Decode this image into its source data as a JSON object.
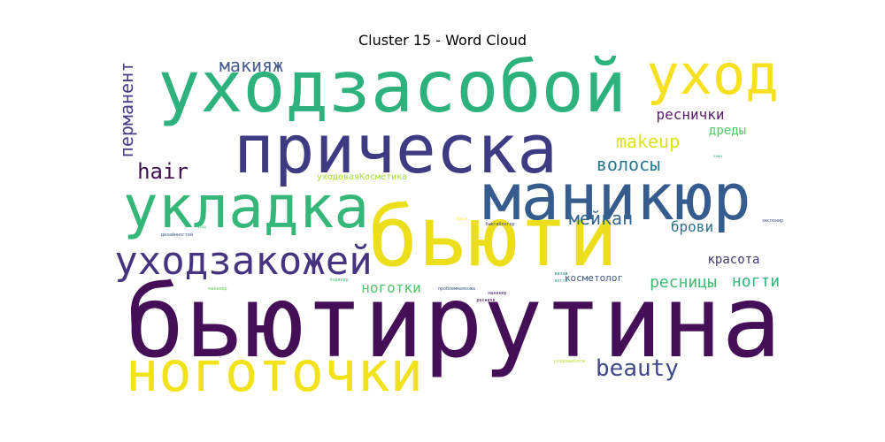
{
  "chart_data": {
    "type": "wordcloud",
    "title": "Cluster 15 - Word Cloud",
    "words": [
      {
        "text": "бьютирутина",
        "weight": 100,
        "color": "#440f56"
      },
      {
        "text": "уходзасобой",
        "weight": 77,
        "color": "#2db27d"
      },
      {
        "text": "прическа",
        "weight": 74,
        "color": "#3e3b83"
      },
      {
        "text": "бьюти",
        "weight": 73,
        "color": "#ecde1b"
      },
      {
        "text": "маникюр",
        "weight": 69,
        "color": "#365c8d"
      },
      {
        "text": "укладка",
        "weight": 67,
        "color": "#35b779"
      },
      {
        "text": "ноготочки",
        "weight": 62,
        "color": "#f2e21a"
      },
      {
        "text": "уход",
        "weight": 58,
        "color": "#f6e01f"
      },
      {
        "text": "уходзакожей",
        "weight": 43,
        "color": "#463480"
      },
      {
        "text": "beauty",
        "weight": 26,
        "color": "#3f4889"
      },
      {
        "text": "hair",
        "weight": 23,
        "color": "#3f0f52"
      },
      {
        "text": "макияж",
        "weight": 20,
        "color": "#475c8c"
      },
      {
        "text": "перманент",
        "weight": 19,
        "color": "#433e85"
      },
      {
        "text": "makeup",
        "weight": 18,
        "color": "#dde318"
      },
      {
        "text": "волосы",
        "weight": 17,
        "color": "#2a788e"
      },
      {
        "text": "мейкап",
        "weight": 17,
        "color": "#31668e"
      },
      {
        "text": "ресницы",
        "weight": 16,
        "color": "#3dbc74"
      },
      {
        "text": "ногти",
        "weight": 16,
        "color": "#32b67a"
      },
      {
        "text": "реснички",
        "weight": 15,
        "color": "#5a1d6e"
      },
      {
        "text": "брови",
        "weight": 15,
        "color": "#2e6f8e"
      },
      {
        "text": "ноготки",
        "weight": 14,
        "color": "#52c569"
      },
      {
        "text": "дреды",
        "weight": 13,
        "color": "#58c765"
      },
      {
        "text": "красота",
        "weight": 12,
        "color": "#3d3a6e"
      },
      {
        "text": "косметолог",
        "weight": 8,
        "color": "#3e5a8a"
      },
      {
        "text": "уходоваяКосметика",
        "weight": 8,
        "color": "#a8db34"
      },
      {
        "text": "подиквр",
        "weight": 3,
        "color": "#42be71"
      },
      {
        "text": "проблемнаякожа",
        "weight": 3,
        "color": "#3b528b"
      },
      {
        "text": "бьютиблогер",
        "weight": 3,
        "color": "#3e4a89"
      },
      {
        "text": "дизайнногтей",
        "weight": 3,
        "color": "#3b528b"
      },
      {
        "text": "экспонир",
        "weight": 2,
        "color": "#3e4a89"
      },
      {
        "text": "уходовыекосм",
        "weight": 2,
        "color": "#b5de2b"
      },
      {
        "text": "визаж",
        "weight": 2,
        "color": "#21918c"
      },
      {
        "text": "маникюр",
        "weight": 2,
        "color": "#6ece58"
      },
      {
        "text": "ресничн",
        "weight": 2,
        "color": "#440154"
      },
      {
        "text": "маникюр",
        "weight": 2,
        "color": "#482777"
      },
      {
        "text": "ногти",
        "weight": 2,
        "color": "#1fa188"
      },
      {
        "text": "кожа",
        "weight": 2,
        "color": "#2db27d"
      },
      {
        "text": "бьюти",
        "weight": 2,
        "color": "#fde725"
      },
      {
        "text": "уход",
        "weight": 2,
        "color": "#35b779"
      }
    ]
  }
}
